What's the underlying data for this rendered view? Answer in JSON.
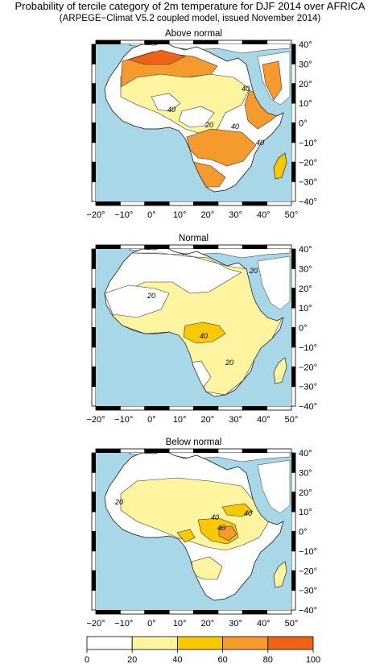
{
  "title": "Probability of tercile category of 2m temperature for DJF 2014 over AFRICA",
  "subtitle": "(ARPEGE−Climat V5.2 coupled model, issued November 2014)",
  "panels": [
    {
      "title": "Above normal",
      "contour_labels": [
        "40",
        "40",
        "20",
        "40",
        "40"
      ]
    },
    {
      "title": "Normal",
      "contour_labels": [
        "20",
        "40",
        "20",
        "20"
      ]
    },
    {
      "title": "Below normal",
      "contour_labels": [
        "20",
        "40",
        "40",
        "40"
      ]
    }
  ],
  "lon_ticks": [
    "−20°",
    "−10°",
    "0°",
    "10°",
    "20°",
    "30°",
    "40°",
    "50°"
  ],
  "lat_ticks": [
    "40°",
    "30°",
    "20°",
    "10°",
    "0°",
    "−10°",
    "−20°",
    "−30°",
    "−40°"
  ],
  "colorbar": {
    "ticks": [
      "0",
      "20",
      "40",
      "60",
      "80",
      "100"
    ],
    "colors": [
      "#ffffff",
      "#fff5a0",
      "#f8c800",
      "#f59a2c",
      "#ef6414"
    ]
  },
  "colors": {
    "ocean": "#a8d8e8",
    "land_low": "#ffffff",
    "c20_40": "#fff5a0",
    "c40_60": "#f8c800",
    "c60_80": "#f59a2c",
    "c80_100": "#ef6414"
  }
}
